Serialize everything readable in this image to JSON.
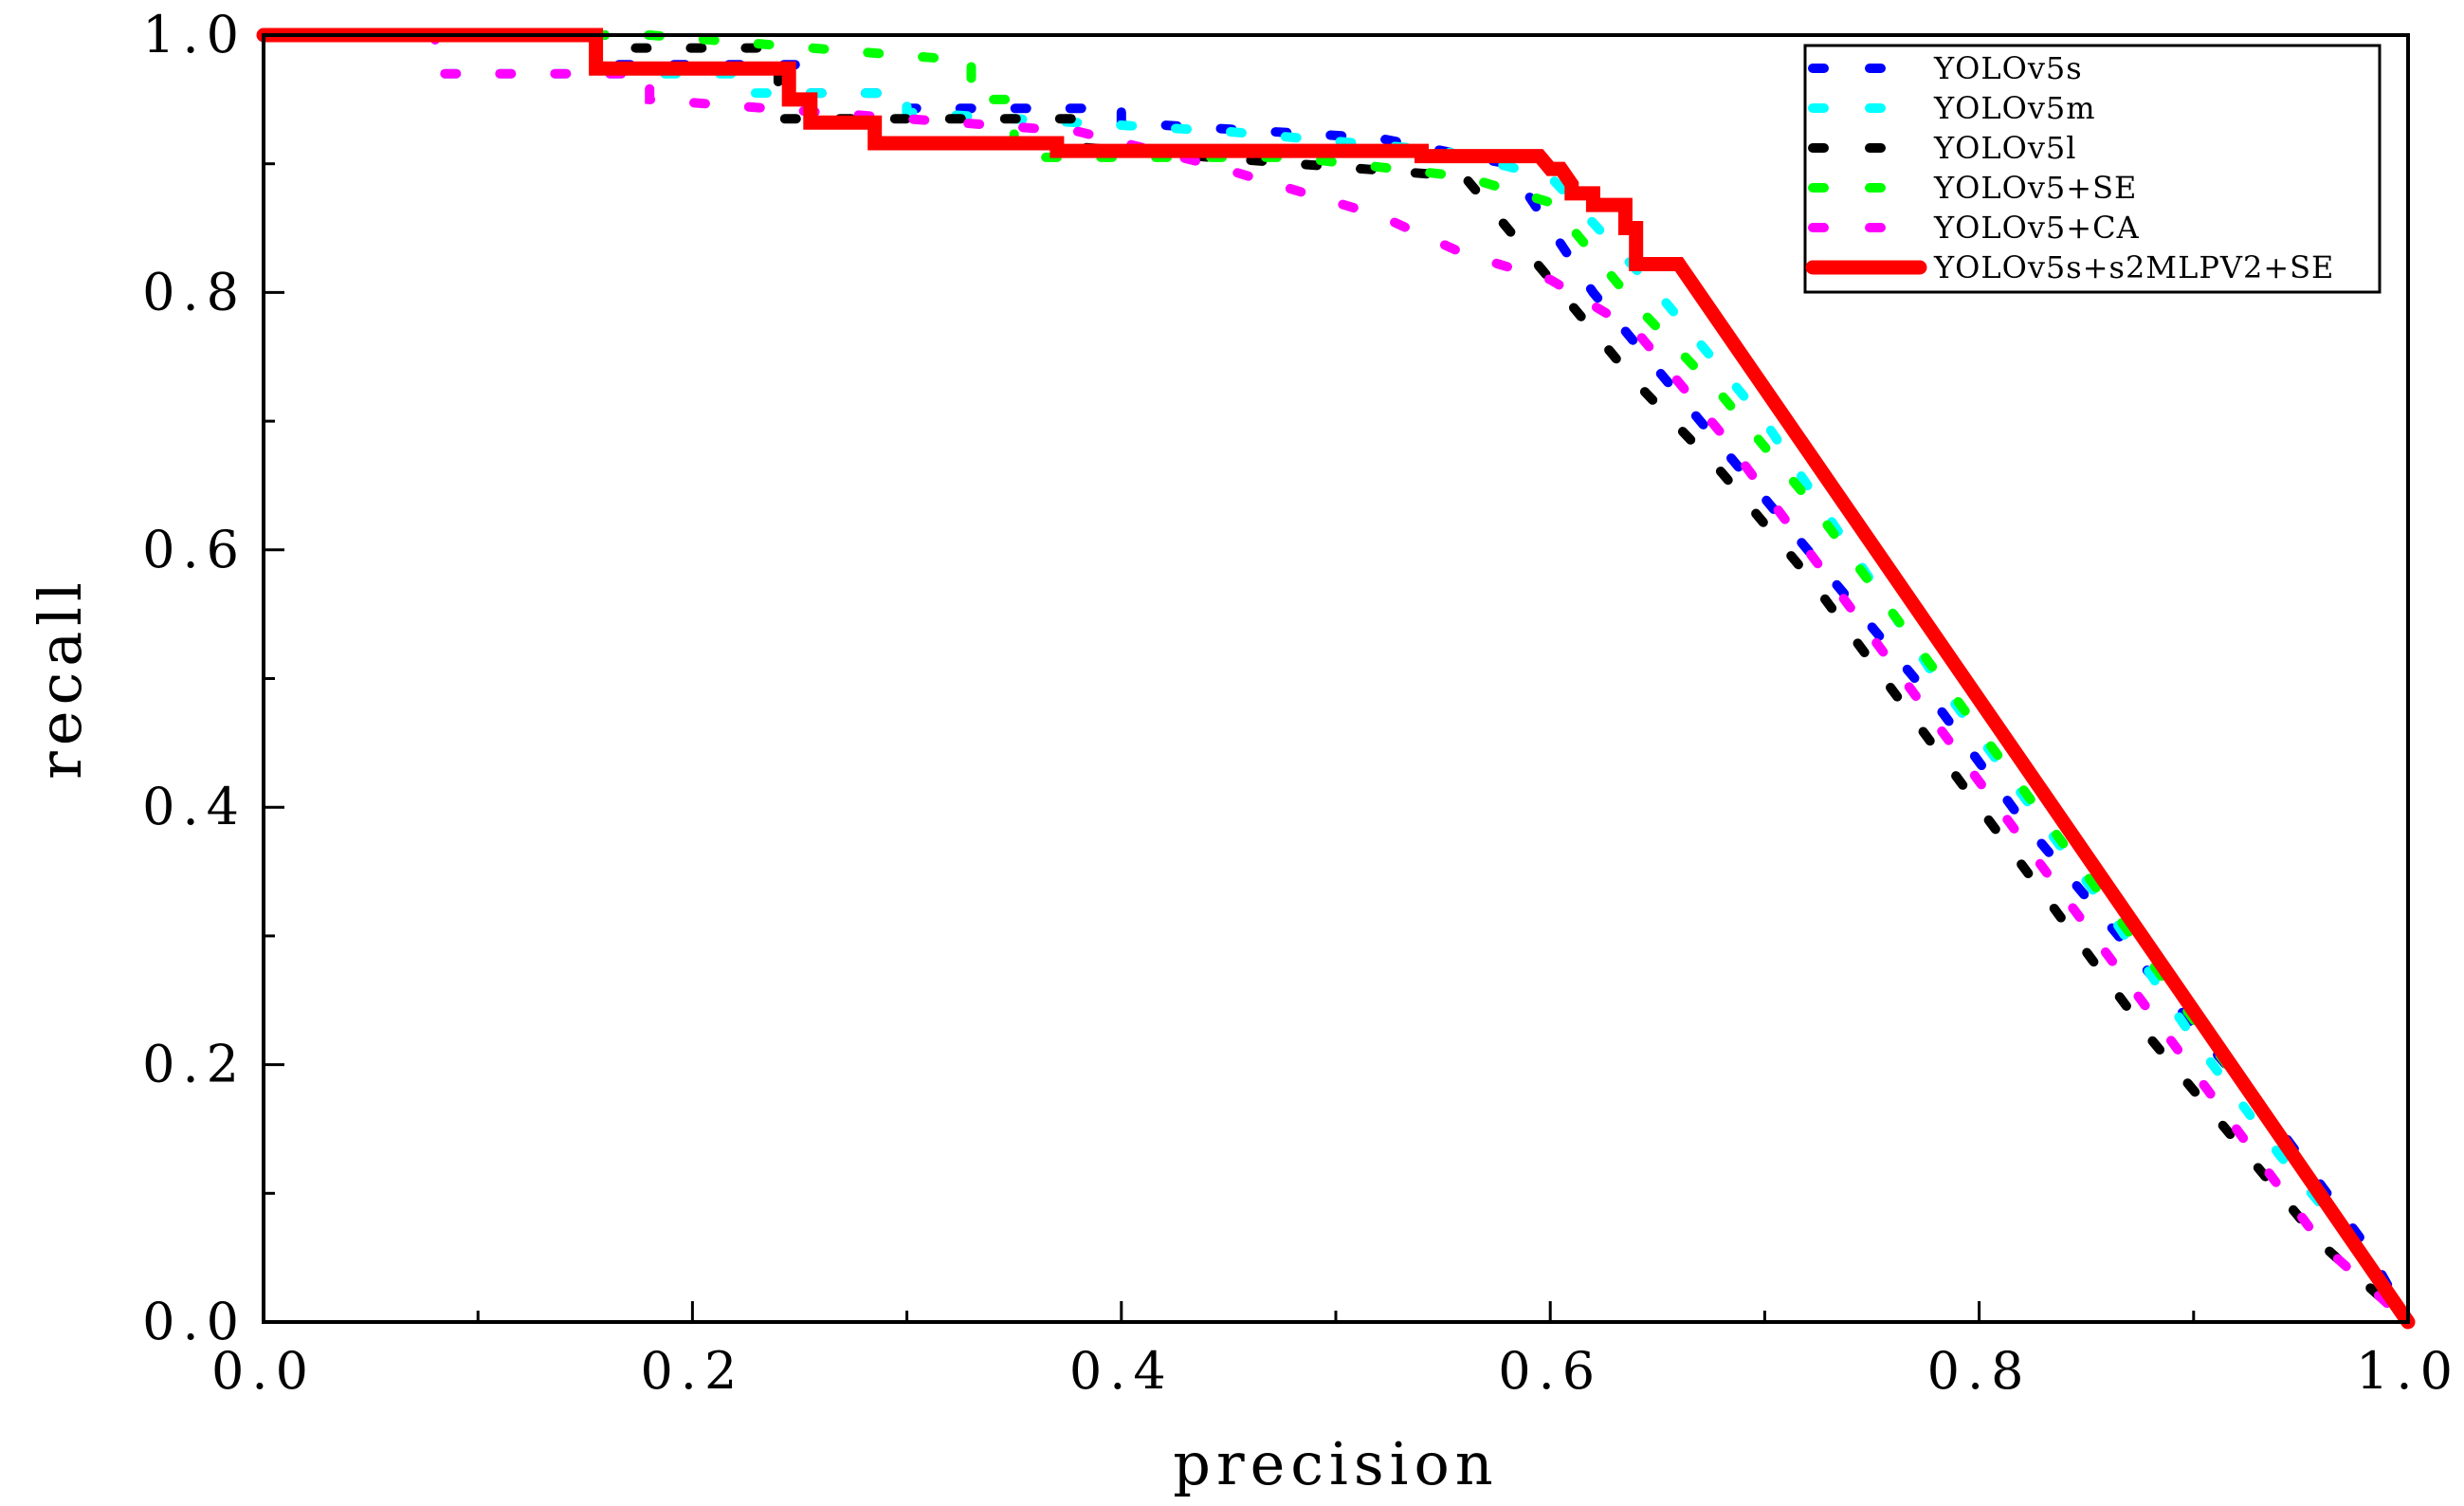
{
  "chart_data": {
    "type": "line",
    "title": "",
    "xlabel": "precision",
    "ylabel": "recall",
    "xlim": [
      0.0,
      1.0
    ],
    "ylim": [
      0.0,
      1.0
    ],
    "xticks": [
      "0.0",
      "0.2",
      "0.4",
      "0.6",
      "0.8",
      "1.0"
    ],
    "yticks": [
      "0.0",
      "0.2",
      "0.4",
      "0.6",
      "0.8",
      "1.0"
    ],
    "grid": false,
    "legend_position": "top-right",
    "series": [
      {
        "name": "YOLOv5s",
        "color": "#0000ff",
        "style": "dashed",
        "x": [
          0.0,
          0.16,
          0.16,
          0.22,
          0.25,
          0.25,
          0.3,
          0.3,
          0.4,
          0.4,
          0.52,
          0.58,
          0.62,
          0.66,
          0.7,
          0.74,
          0.78,
          0.82,
          0.86,
          0.9,
          0.94,
          0.98,
          1.0
        ],
        "y": [
          1.0,
          1.0,
          0.977,
          0.977,
          0.977,
          0.955,
          0.955,
          0.943,
          0.943,
          0.932,
          0.92,
          0.9,
          0.8,
          0.72,
          0.64,
          0.56,
          0.48,
          0.39,
          0.31,
          0.23,
          0.15,
          0.06,
          0.0
        ]
      },
      {
        "name": "YOLOv5m",
        "color": "#00ffff",
        "style": "dashed",
        "x": [
          0.0,
          0.08,
          0.08,
          0.22,
          0.22,
          0.3,
          0.3,
          0.45,
          0.55,
          0.6,
          0.65,
          0.7,
          0.74,
          0.78,
          0.82,
          0.86,
          0.9,
          0.94,
          0.98,
          1.0
        ],
        "y": [
          1.0,
          1.0,
          0.97,
          0.97,
          0.955,
          0.955,
          0.94,
          0.925,
          0.91,
          0.89,
          0.8,
          0.7,
          0.6,
          0.5,
          0.41,
          0.32,
          0.22,
          0.13,
          0.05,
          0.0
        ]
      },
      {
        "name": "YOLOv5l",
        "color": "#000000",
        "style": "dashed",
        "x": [
          0.0,
          0.17,
          0.17,
          0.24,
          0.24,
          0.38,
          0.38,
          0.56,
          0.6,
          0.64,
          0.68,
          0.72,
          0.76,
          0.8,
          0.84,
          0.88,
          0.92,
          0.96,
          1.0
        ],
        "y": [
          1.0,
          1.0,
          0.99,
          0.99,
          0.935,
          0.935,
          0.913,
          0.89,
          0.81,
          0.73,
          0.66,
          0.58,
          0.49,
          0.4,
          0.31,
          0.22,
          0.14,
          0.06,
          0.0
        ]
      },
      {
        "name": "YOLOv5+SE",
        "color": "#00ff00",
        "style": "dashed",
        "x": [
          0.0,
          0.18,
          0.18,
          0.33,
          0.33,
          0.35,
          0.35,
          0.48,
          0.56,
          0.6,
          0.64,
          0.68,
          0.72,
          0.76,
          0.8,
          0.84,
          0.88,
          0.92,
          0.96,
          1.0
        ],
        "y": [
          1.0,
          1.0,
          1.0,
          0.98,
          0.95,
          0.95,
          0.905,
          0.905,
          0.89,
          0.87,
          0.79,
          0.72,
          0.64,
          0.55,
          0.46,
          0.37,
          0.28,
          0.19,
          0.1,
          0.0
        ]
      },
      {
        "name": "YOLOv5+CA",
        "color": "#ff00ff",
        "style": "dashed",
        "x": [
          0.0,
          0.08,
          0.08,
          0.18,
          0.18,
          0.38,
          0.44,
          0.48,
          0.52,
          0.56,
          0.6,
          0.64,
          0.68,
          0.72,
          0.76,
          0.8,
          0.84,
          0.88,
          0.92,
          0.96,
          1.0
        ],
        "y": [
          1.0,
          1.0,
          0.97,
          0.97,
          0.95,
          0.925,
          0.9,
          0.88,
          0.86,
          0.83,
          0.81,
          0.77,
          0.69,
          0.6,
          0.51,
          0.42,
          0.33,
          0.24,
          0.15,
          0.06,
          0.0
        ]
      },
      {
        "name": "YOLOv5s+s2MLPV2+SE",
        "color": "#ff0000",
        "style": "solid",
        "x": [
          0.0,
          0.155,
          0.155,
          0.245,
          0.245,
          0.255,
          0.255,
          0.285,
          0.285,
          0.37,
          0.37,
          0.54,
          0.54,
          0.595,
          0.6,
          0.605,
          0.61,
          0.61,
          0.62,
          0.62,
          0.635,
          0.635,
          0.64,
          0.64,
          0.66,
          0.66,
          1.0
        ],
        "y": [
          1.0,
          1.0,
          0.974,
          0.974,
          0.95,
          0.95,
          0.932,
          0.932,
          0.916,
          0.916,
          0.91,
          0.91,
          0.906,
          0.906,
          0.896,
          0.896,
          0.884,
          0.877,
          0.877,
          0.868,
          0.868,
          0.85,
          0.85,
          0.822,
          0.822,
          0.822,
          0.0
        ]
      }
    ]
  }
}
